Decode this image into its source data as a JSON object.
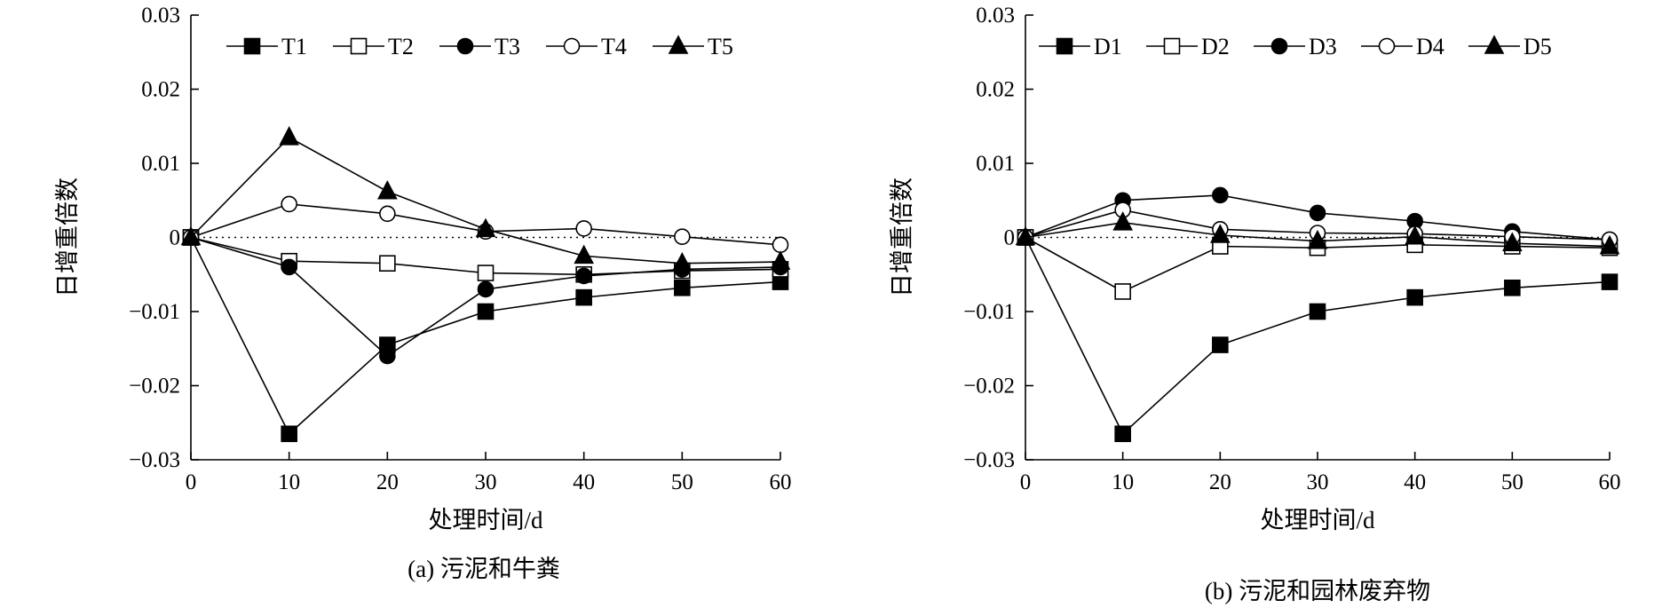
{
  "chart_data": [
    {
      "type": "line",
      "caption": "(a) 污泥和牛粪",
      "xlabel": "处理时间/d",
      "ylabel": "日增重倍数",
      "xlim": [
        0,
        60
      ],
      "ylim": [
        -0.03,
        0.03
      ],
      "xticks": [
        "0",
        "10",
        "20",
        "30",
        "40",
        "50",
        "60"
      ],
      "yticks": [
        "0.03",
        "0.02",
        "0.01",
        "0",
        "−0.01",
        "−0.02",
        "−0.03"
      ],
      "x": [
        0,
        10,
        20,
        30,
        40,
        50,
        60
      ],
      "zero_reference_line": "dotted",
      "legend_position": "top",
      "series": [
        {
          "name": "T1",
          "marker": "filled-square",
          "values": [
            0,
            -0.0265,
            -0.0145,
            -0.01,
            -0.0081,
            -0.0068,
            -0.006
          ]
        },
        {
          "name": "T2",
          "marker": "open-square",
          "values": [
            0,
            -0.0032,
            -0.0035,
            -0.0048,
            -0.005,
            -0.0045,
            -0.0043
          ]
        },
        {
          "name": "T3",
          "marker": "filled-circle",
          "values": [
            0,
            -0.004,
            -0.016,
            -0.007,
            -0.0052,
            -0.0043,
            -0.004
          ]
        },
        {
          "name": "T4",
          "marker": "open-circle",
          "values": [
            0,
            0.0045,
            0.0032,
            0.0008,
            0.0012,
            0.0001,
            -0.001
          ]
        },
        {
          "name": "T5",
          "marker": "filled-triangle",
          "values": [
            0,
            0.0135,
            0.0062,
            0.0011,
            -0.0025,
            -0.0035,
            -0.0033
          ]
        }
      ]
    },
    {
      "type": "line",
      "caption": "(b) 污泥和园林废弃物",
      "xlabel": "处理时间/d",
      "ylabel": "日增重倍数",
      "xlim": [
        0,
        60
      ],
      "ylim": [
        -0.03,
        0.03
      ],
      "xticks": [
        "0",
        "10",
        "20",
        "30",
        "40",
        "50",
        "60"
      ],
      "yticks": [
        "0.03",
        "0.02",
        "0.01",
        "0",
        "−0.01",
        "−0.02",
        "−0.03"
      ],
      "x": [
        0,
        10,
        20,
        30,
        40,
        50,
        60
      ],
      "zero_reference_line": "dotted",
      "legend_position": "top",
      "series": [
        {
          "name": "D1",
          "marker": "filled-square",
          "values": [
            0,
            -0.0265,
            -0.0145,
            -0.01,
            -0.0081,
            -0.0068,
            -0.006
          ]
        },
        {
          "name": "D2",
          "marker": "open-square",
          "values": [
            0,
            -0.0073,
            -0.0012,
            -0.0014,
            -0.001,
            -0.0012,
            -0.0014
          ]
        },
        {
          "name": "D3",
          "marker": "filled-circle",
          "values": [
            0,
            0.005,
            0.0057,
            0.0033,
            0.0022,
            0.0008,
            -0.0003
          ]
        },
        {
          "name": "D4",
          "marker": "open-circle",
          "values": [
            0,
            0.0037,
            0.0011,
            0.0006,
            0.0005,
            0.0001,
            -0.0003
          ]
        },
        {
          "name": "D5",
          "marker": "filled-triangle",
          "values": [
            0,
            0.002,
            0.0003,
            -0.0005,
            0.0001,
            -0.0008,
            -0.0012
          ]
        }
      ]
    }
  ]
}
